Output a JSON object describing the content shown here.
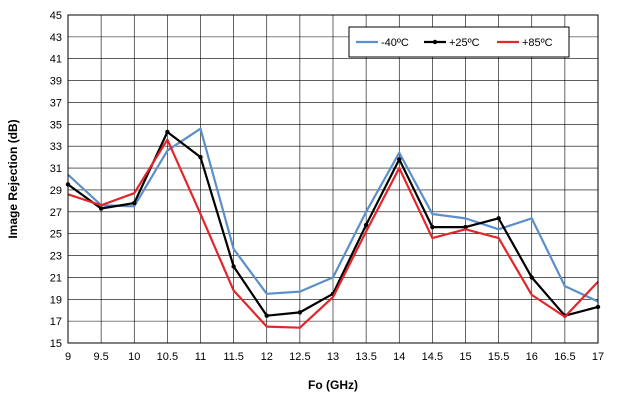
{
  "chart_data": {
    "type": "line",
    "title": "",
    "xlabel": "Fo (GHz)",
    "ylabel": "Image Rejection (dB)",
    "xlim": [
      9,
      17
    ],
    "ylim": [
      15,
      45
    ],
    "x": [
      9,
      9.5,
      10,
      10.5,
      11,
      11.5,
      12,
      12.5,
      13,
      13.5,
      14,
      14.5,
      15,
      15.5,
      16,
      16.5,
      17
    ],
    "x_ticks": [
      "9",
      "9.5",
      "10",
      "10.5",
      "11",
      "11.5",
      "12",
      "12.5",
      "13",
      "13.5",
      "14",
      "14.5",
      "15",
      "15.5",
      "16",
      "16.5",
      "17"
    ],
    "y_ticks": [
      "15",
      "17",
      "19",
      "21",
      "23",
      "25",
      "27",
      "29",
      "31",
      "33",
      "35",
      "37",
      "39",
      "41",
      "43",
      "45"
    ],
    "grid": true,
    "legend_position": "top-right",
    "series": [
      {
        "name": "-40ºC",
        "color": "#5b8fc9",
        "marker": false,
        "values": [
          30.4,
          27.6,
          27.5,
          32.6,
          34.6,
          23.6,
          19.5,
          19.7,
          21.0,
          27.0,
          32.4,
          26.8,
          26.4,
          25.4,
          26.4,
          20.2,
          18.8
        ]
      },
      {
        "name": "+25ºC",
        "color": "#000000",
        "marker": true,
        "values": [
          29.5,
          27.3,
          27.8,
          34.3,
          32.0,
          22.0,
          17.5,
          17.8,
          19.5,
          25.8,
          31.8,
          25.6,
          25.6,
          26.4,
          21.0,
          17.5,
          18.3
        ]
      },
      {
        "name": "+85ºC",
        "color": "#e2262c",
        "marker": false,
        "values": [
          28.6,
          27.6,
          28.7,
          33.6,
          26.8,
          19.8,
          16.5,
          16.4,
          19.2,
          25.2,
          31.0,
          24.6,
          25.4,
          24.6,
          19.4,
          17.4,
          20.6
        ]
      }
    ]
  }
}
